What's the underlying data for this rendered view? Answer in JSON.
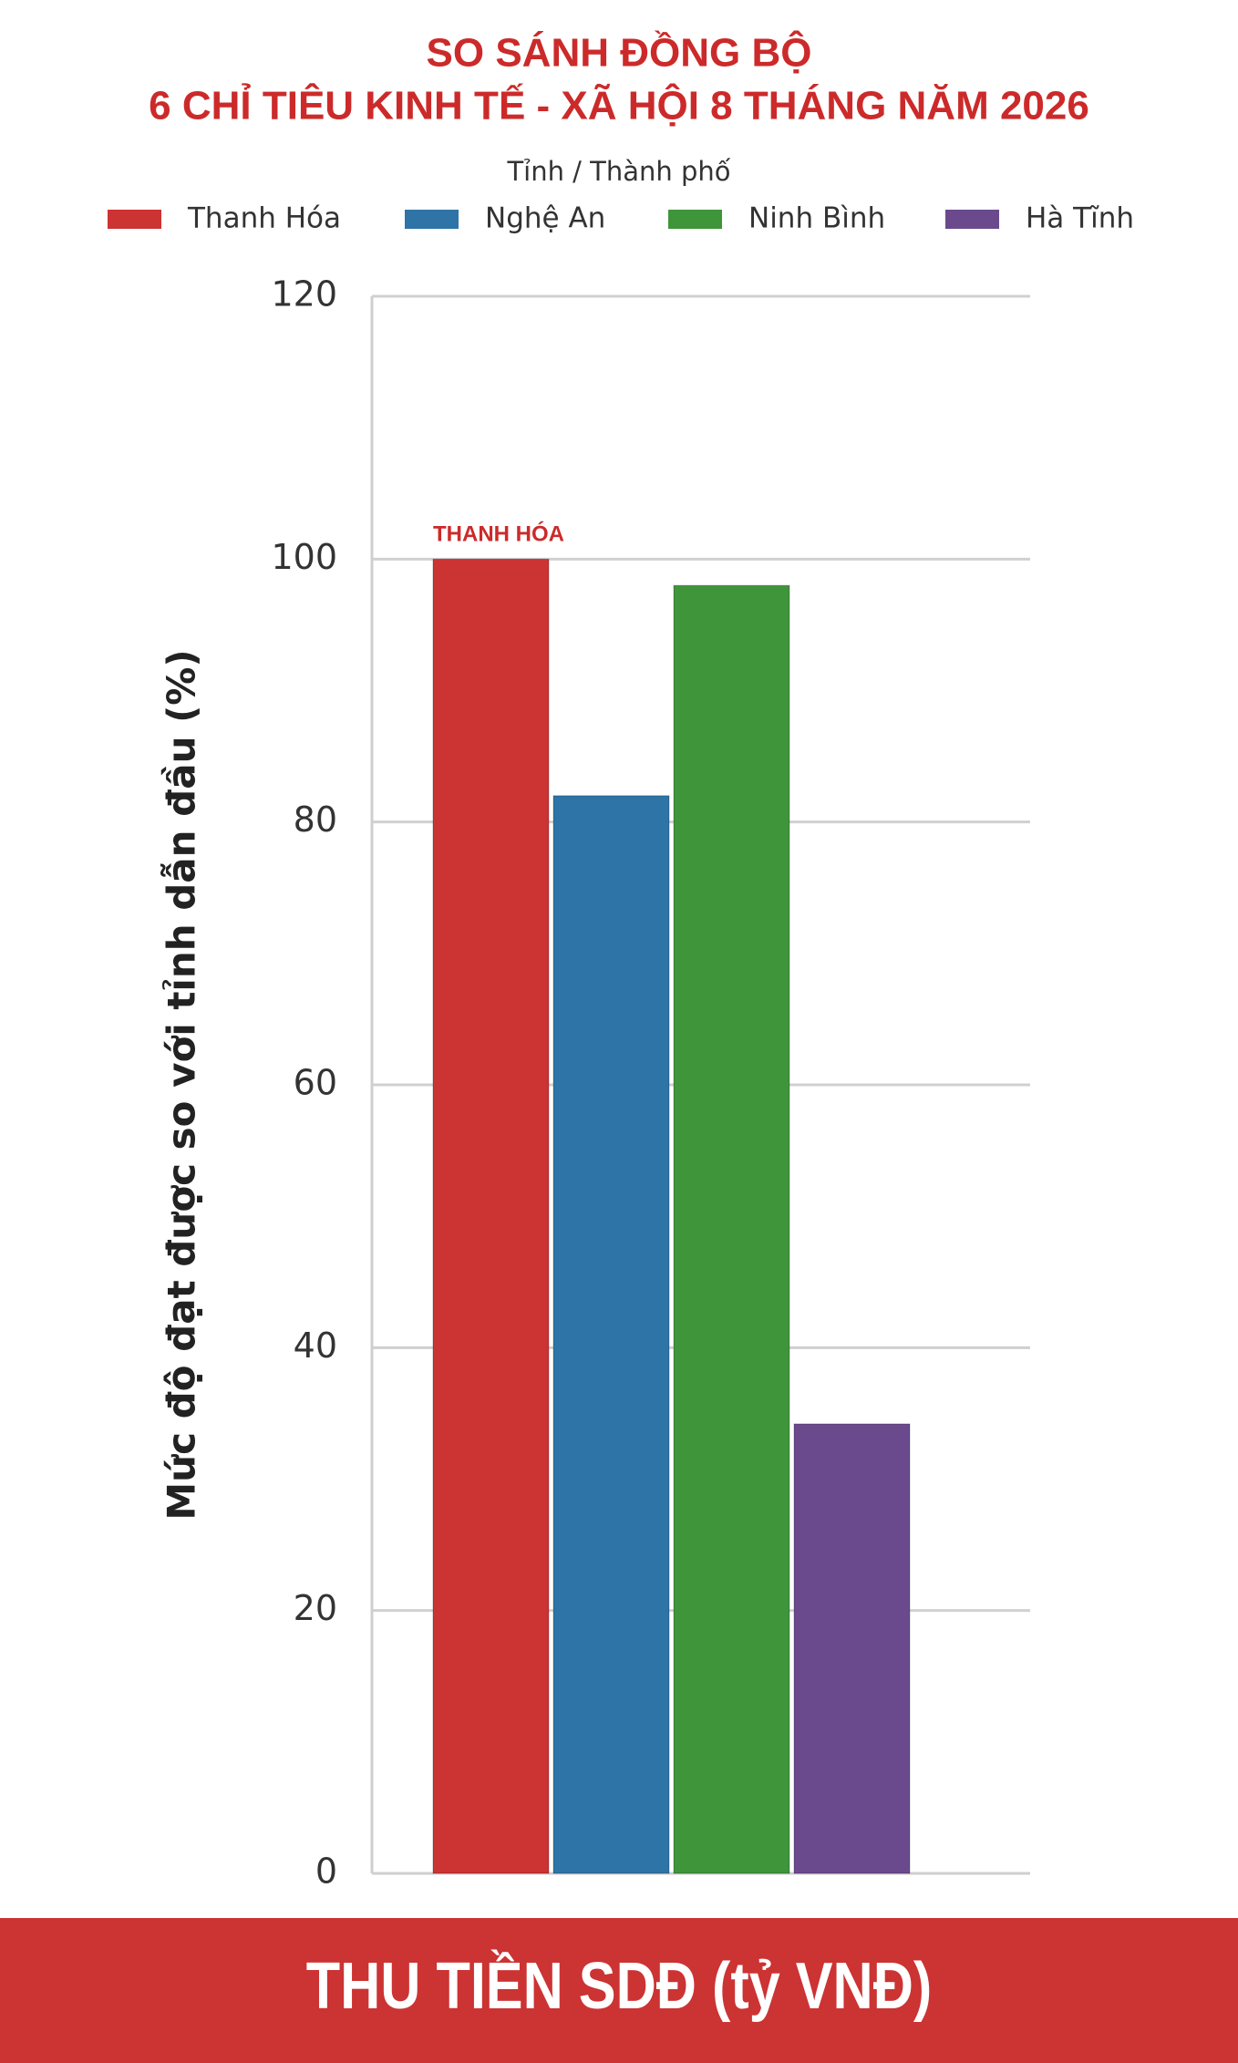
{
  "chart_data": {
    "type": "bar",
    "title": [
      "SO SÁNH ĐỒNG BỘ",
      "6 CHỈ TIÊU KINH TẾ - XÃ HỘI 8 THÁNG NĂM 2026"
    ],
    "legend_title": "Tỉnh / Thành phố",
    "ylabel": "Mức độ đạt được so với tỉnh dẫn đầu (%)",
    "annotation": "THANH HÓA",
    "series": [
      {
        "name": "Thanh Hóa",
        "color": "#cc3333",
        "values": [
          100
        ]
      },
      {
        "name": "Nghệ An",
        "color": "#2e74a6",
        "values": [
          82
        ]
      },
      {
        "name": "Ninh Bình",
        "color": "#3f953a",
        "values": [
          98
        ]
      },
      {
        "name": "Hà Tĩnh",
        "color": "#6a4a8d",
        "values": [
          34.2
        ]
      }
    ],
    "ylim": [
      0,
      120
    ],
    "yticks": [
      0,
      20,
      40,
      60,
      80,
      100,
      120
    ],
    "grid": true,
    "legend": "top"
  },
  "footer": "THU TIỀN SDĐ (tỷ VNĐ)"
}
